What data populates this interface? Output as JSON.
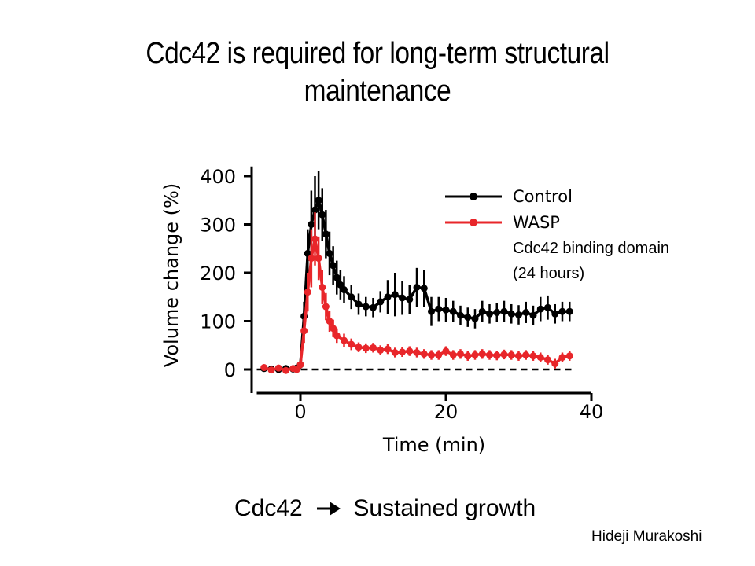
{
  "title_lines": [
    "Cdc42 is required for long-term structural",
    "maintenance"
  ],
  "footer": {
    "left": "Cdc42",
    "right": "Sustained growth",
    "arrow_icon": "right-arrow-icon"
  },
  "credit": "Hideji Murakoshi",
  "chart_data": {
    "type": "line",
    "xlabel": "Time (min)",
    "ylabel": "Volume change (%)",
    "xlim": [
      -6,
      40
    ],
    "ylim": [
      -30,
      420
    ],
    "x_ticks": [
      0,
      20,
      40
    ],
    "y_ticks": [
      0,
      100,
      200,
      300,
      400
    ],
    "x_tick_labels": [
      "0",
      "20",
      "40"
    ],
    "y_tick_labels": [
      "0",
      "100",
      "200",
      "300",
      "400"
    ],
    "legend": {
      "position": "top-right",
      "extra_lines": [
        "Cdc42 binding domain",
        "(24 hours)"
      ]
    },
    "baseline": {
      "y": 0,
      "style": "dashed"
    },
    "series": [
      {
        "name": "Control",
        "color": "#000000",
        "points": [
          [
            -5,
            2,
            4
          ],
          [
            -4,
            1,
            4
          ],
          [
            -3,
            0,
            4
          ],
          [
            -2,
            2,
            4
          ],
          [
            -1,
            1,
            4
          ],
          [
            -0.5,
            3,
            4
          ],
          [
            0,
            10,
            10
          ],
          [
            0.5,
            110,
            30
          ],
          [
            1,
            240,
            50
          ],
          [
            1.5,
            300,
            70
          ],
          [
            2,
            330,
            70
          ],
          [
            2.5,
            350,
            60
          ],
          [
            3,
            320,
            55
          ],
          [
            3.5,
            280,
            50
          ],
          [
            4,
            240,
            45
          ],
          [
            4.5,
            215,
            40
          ],
          [
            5,
            190,
            35
          ],
          [
            5.5,
            175,
            30
          ],
          [
            6,
            165,
            28
          ],
          [
            7,
            150,
            25
          ],
          [
            8,
            135,
            22
          ],
          [
            9,
            130,
            20
          ],
          [
            10,
            128,
            20
          ],
          [
            11,
            140,
            22
          ],
          [
            12,
            150,
            35
          ],
          [
            13,
            155,
            45
          ],
          [
            14,
            148,
            35
          ],
          [
            15,
            145,
            30
          ],
          [
            16,
            170,
            40
          ],
          [
            17,
            168,
            38
          ],
          [
            18,
            120,
            30
          ],
          [
            19,
            125,
            25
          ],
          [
            20,
            123,
            25
          ],
          [
            21,
            120,
            22
          ],
          [
            22,
            112,
            20
          ],
          [
            23,
            108,
            20
          ],
          [
            24,
            105,
            20
          ],
          [
            25,
            120,
            22
          ],
          [
            26,
            115,
            20
          ],
          [
            27,
            118,
            20
          ],
          [
            28,
            120,
            22
          ],
          [
            29,
            115,
            20
          ],
          [
            30,
            113,
            20
          ],
          [
            31,
            118,
            22
          ],
          [
            32,
            112,
            20
          ],
          [
            33,
            125,
            25
          ],
          [
            34,
            128,
            25
          ],
          [
            35,
            115,
            20
          ],
          [
            36,
            120,
            20
          ],
          [
            37,
            120,
            20
          ]
        ]
      },
      {
        "name": "WASP",
        "color": "#e8262a",
        "points": [
          [
            -5,
            4,
            4
          ],
          [
            -4,
            -1,
            4
          ],
          [
            -3,
            3,
            4
          ],
          [
            -2,
            -2,
            4
          ],
          [
            -1,
            2,
            4
          ],
          [
            -0.5,
            0,
            4
          ],
          [
            0,
            10,
            8
          ],
          [
            0.5,
            80,
            25
          ],
          [
            1,
            160,
            40
          ],
          [
            1.5,
            230,
            60
          ],
          [
            2,
            270,
            55
          ],
          [
            2.5,
            230,
            45
          ],
          [
            3,
            170,
            35
          ],
          [
            3.5,
            130,
            28
          ],
          [
            4,
            100,
            22
          ],
          [
            4.5,
            85,
            18
          ],
          [
            5,
            70,
            15
          ],
          [
            6,
            60,
            14
          ],
          [
            7,
            52,
            12
          ],
          [
            8,
            46,
            10
          ],
          [
            9,
            44,
            10
          ],
          [
            10,
            45,
            10
          ],
          [
            11,
            40,
            10
          ],
          [
            12,
            42,
            10
          ],
          [
            13,
            35,
            10
          ],
          [
            14,
            36,
            10
          ],
          [
            15,
            38,
            10
          ],
          [
            16,
            35,
            10
          ],
          [
            17,
            32,
            10
          ],
          [
            18,
            30,
            10
          ],
          [
            19,
            30,
            10
          ],
          [
            20,
            38,
            10
          ],
          [
            21,
            30,
            10
          ],
          [
            22,
            32,
            10
          ],
          [
            23,
            28,
            10
          ],
          [
            24,
            30,
            10
          ],
          [
            25,
            32,
            10
          ],
          [
            26,
            30,
            10
          ],
          [
            27,
            29,
            10
          ],
          [
            28,
            31,
            10
          ],
          [
            29,
            30,
            10
          ],
          [
            30,
            28,
            10
          ],
          [
            31,
            30,
            10
          ],
          [
            32,
            28,
            10
          ],
          [
            33,
            25,
            10
          ],
          [
            34,
            20,
            10
          ],
          [
            35,
            12,
            10
          ],
          [
            36,
            25,
            10
          ],
          [
            37,
            28,
            10
          ]
        ]
      }
    ]
  }
}
